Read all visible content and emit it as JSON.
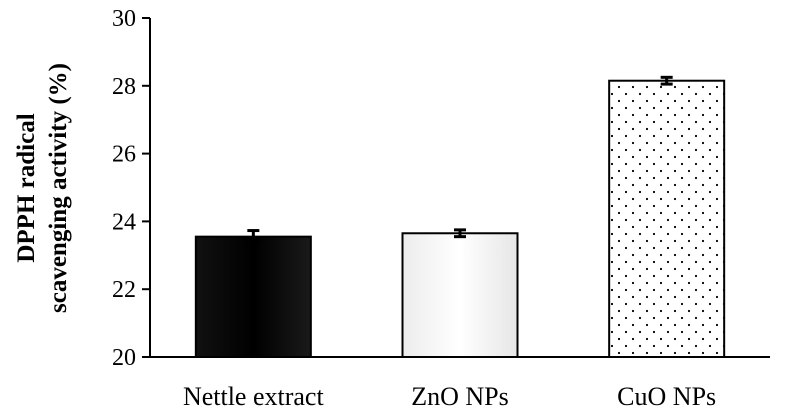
{
  "chart_data": {
    "type": "bar",
    "title": "",
    "xlabel": "",
    "ylabel_lines": [
      "DPPH radical",
      "scavenging activity (%)"
    ],
    "ylim": [
      20,
      30
    ],
    "yticks": [
      20,
      22,
      24,
      26,
      28,
      30
    ],
    "categories": [
      "Nettle extract",
      "ZnO NPs",
      "CuO NPs"
    ],
    "values": [
      23.55,
      23.65,
      28.15
    ],
    "errors": [
      0.18,
      0.1,
      0.1
    ],
    "fills": [
      "black",
      "white",
      "dotted"
    ],
    "grid": false,
    "legend": "none"
  }
}
